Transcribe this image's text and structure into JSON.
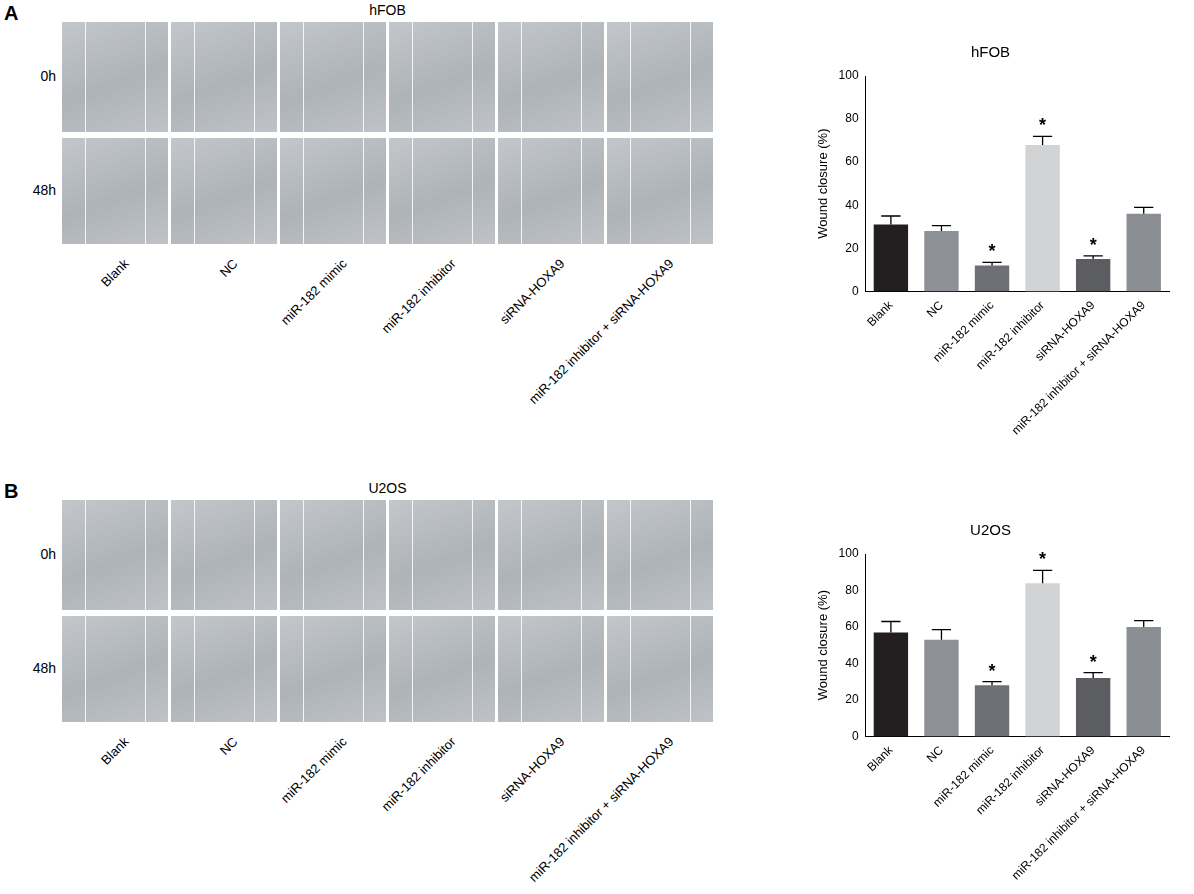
{
  "chart_data": [
    {
      "type": "bar",
      "panel": "A",
      "title": "hFOB",
      "micrograph_rows": [
        "0h",
        "48h"
      ],
      "categories": [
        "Blank",
        "NC",
        "miR-182 mimic",
        "miR-182 inhibitor",
        "siRNA-HOXA9",
        "miR-182 inhibitor + siRNA-HOXA9"
      ],
      "values": [
        31,
        28,
        12,
        68,
        15,
        36
      ],
      "errors": [
        4,
        2.5,
        1.5,
        4,
        1.5,
        3
      ],
      "significant": [
        false,
        false,
        true,
        true,
        true,
        false
      ],
      "significance_label": "*",
      "colors": [
        "#231f20",
        "#8d9096",
        "#6c6f74",
        "#d1d3d4",
        "#5b5d61",
        "#8a8d92"
      ],
      "y_label": "Wound closure (%)",
      "ylim": [
        0,
        100
      ],
      "yticks": [
        0,
        20,
        40,
        60,
        80,
        100
      ],
      "grid": false
    },
    {
      "type": "bar",
      "panel": "B",
      "title": "U2OS",
      "micrograph_rows": [
        "0h",
        "48h"
      ],
      "categories": [
        "Blank",
        "NC",
        "miR-182 mimic",
        "miR-182 inhibitor",
        "siRNA-HOXA9",
        "miR-182 inhibitor + siRNA-HOXA9"
      ],
      "values": [
        57,
        53,
        28,
        84,
        32,
        60
      ],
      "errors": [
        6,
        5.5,
        2,
        7,
        3,
        3.5
      ],
      "significant": [
        false,
        false,
        true,
        true,
        true,
        false
      ],
      "significance_label": "*",
      "colors": [
        "#231f20",
        "#8d9096",
        "#6c6f74",
        "#d1d3d4",
        "#5b5d61",
        "#8a8d92"
      ],
      "y_label": "Wound closure (%)",
      "ylim": [
        0,
        100
      ],
      "yticks": [
        0,
        20,
        40,
        60,
        80,
        100
      ],
      "grid": false
    }
  ]
}
